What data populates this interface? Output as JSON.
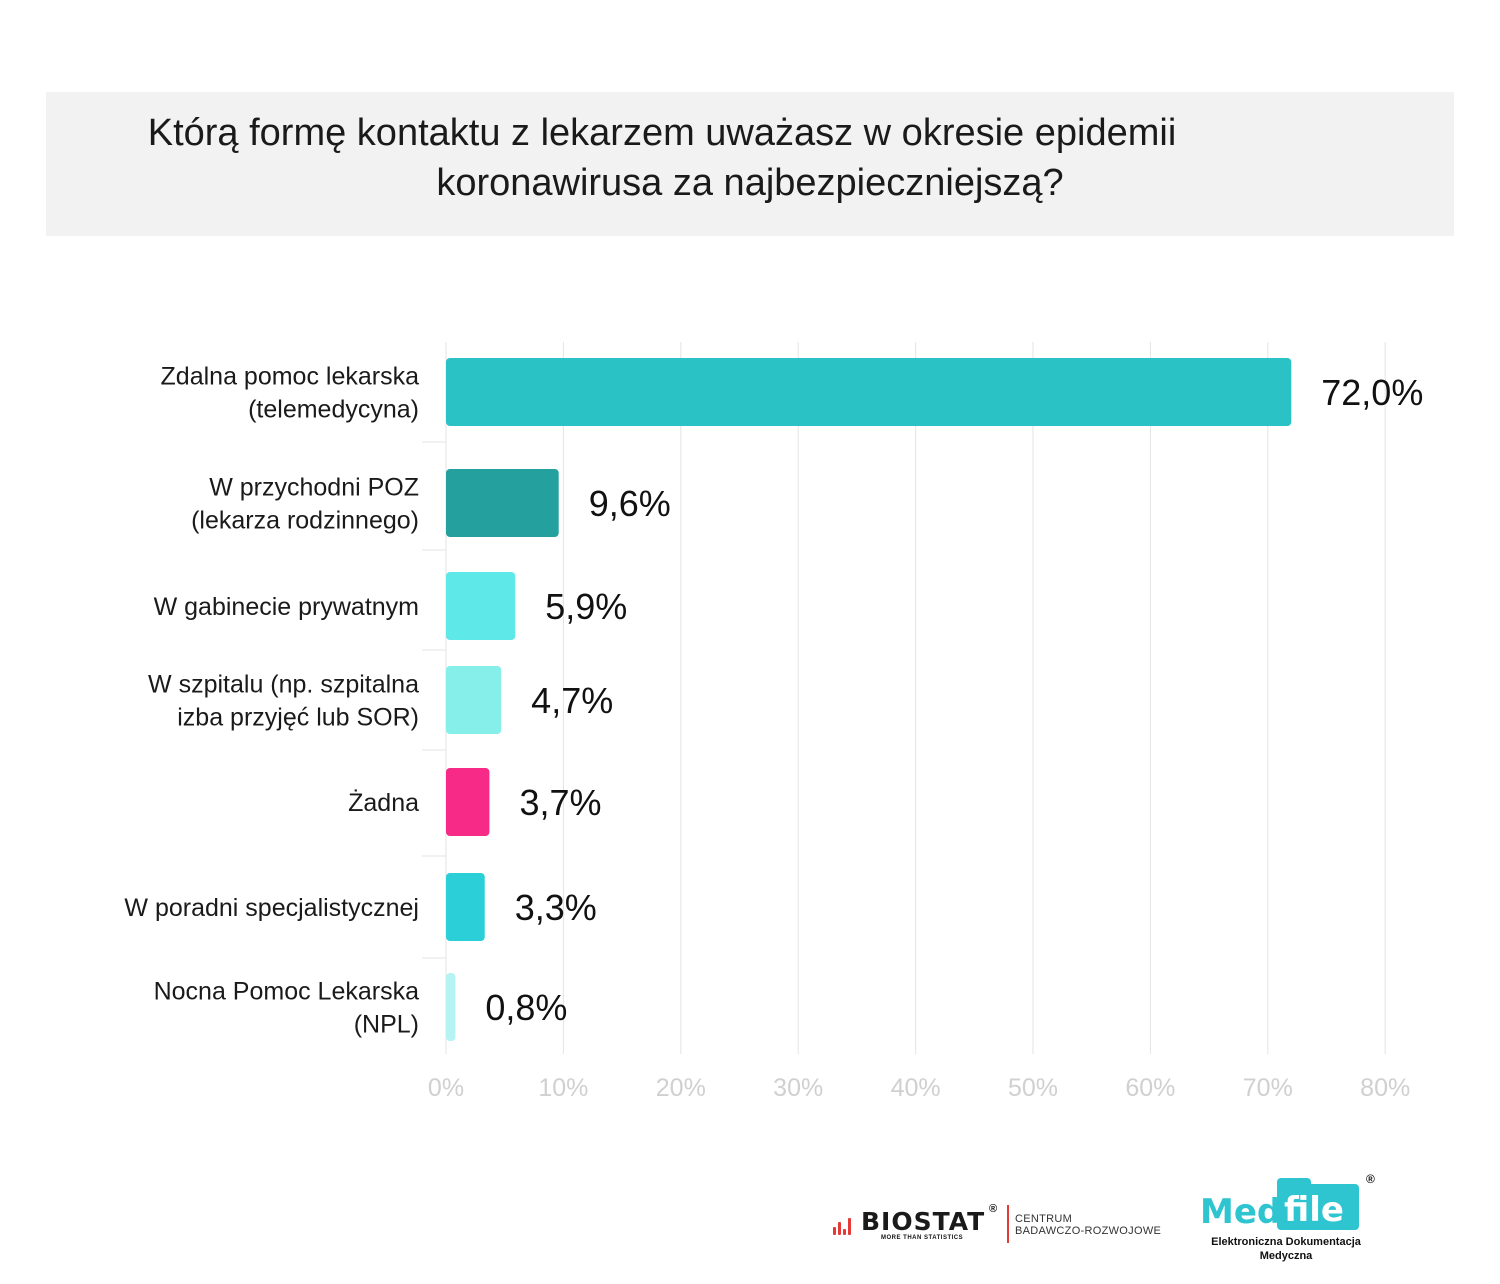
{
  "chart_data": {
    "type": "bar",
    "orientation": "horizontal",
    "title_lines": [
      "Którą formę kontaktu z lekarzem uważasz w okresie epidemii",
      "koronawirusa za najbezpieczniejszą?"
    ],
    "categories": [
      [
        "Zdalna pomoc lekarska",
        "(telemedycyna)"
      ],
      [
        "W przychodni POZ",
        "(lekarza rodzinnego)"
      ],
      [
        "W gabinecie prywatnym"
      ],
      [
        "W szpitalu (np. szpitalna",
        "izba przyjęć lub SOR)"
      ],
      [
        "Żadna"
      ],
      [
        "W poradni specjalistycznej"
      ],
      [
        "Nocna Pomoc Lekarska",
        "(NPL)"
      ]
    ],
    "values": [
      72.0,
      9.6,
      5.9,
      4.7,
      3.7,
      3.3,
      0.8
    ],
    "value_labels": [
      "72,0%",
      "9,6%",
      "5,9%",
      "4,7%",
      "3,7%",
      "3,3%",
      "0,8%"
    ],
    "colors": [
      "#2ac2c4",
      "#24a19f",
      "#5fe8e8",
      "#86efea",
      "#f72a87",
      "#2bcfd8",
      "#b6f3f3"
    ],
    "x_ticks": [
      "0%",
      "10%",
      "20%",
      "30%",
      "40%",
      "50%",
      "60%",
      "70%",
      "80%"
    ],
    "xlim": [
      0,
      80
    ],
    "grid": true,
    "legend": "none"
  },
  "footer": {
    "biostat_name": "BIOSTAT",
    "biostat_reg": "®",
    "biostat_tagline": "MORE THAN STATISTICS",
    "biostat_center_line1": "CENTRUM",
    "biostat_center_line2": "BADAWCZO-ROZWOJOWE",
    "medfile_part1": "Med",
    "medfile_part2": "file",
    "medfile_reg": "®",
    "medfile_sub_line1": "Elektroniczna Dokumentacja",
    "medfile_sub_line2": "Medyczna"
  }
}
